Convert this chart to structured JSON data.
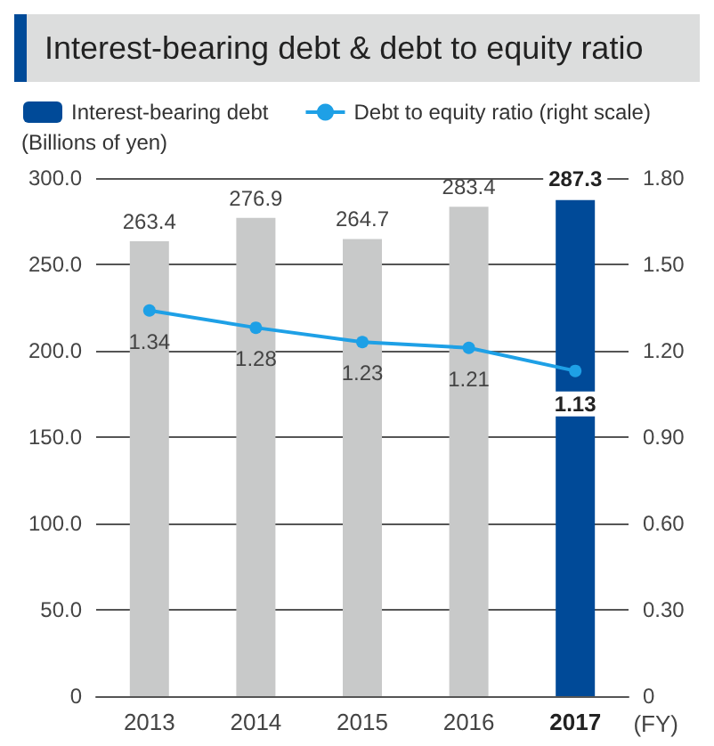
{
  "chart_data": {
    "type": "bar",
    "title": "Interest-bearing debt & debt to equity ratio",
    "categories": [
      "2013",
      "2014",
      "2015",
      "2016",
      "2017"
    ],
    "series": [
      {
        "name": "Interest-bearing debt",
        "color": "#004a98",
        "colors": [
          "#c8c9c9",
          "#c8c9c9",
          "#c8c9c9",
          "#c8c9c9",
          "#004a98"
        ],
        "values": [
          263.4,
          276.9,
          264.7,
          283.4,
          287.3
        ]
      },
      {
        "name": "Debt to equity ratio (right scale)",
        "type": "line",
        "axis": "y2",
        "color": "#1ea0e6",
        "values": [
          1.34,
          1.28,
          1.23,
          1.21,
          1.13
        ]
      }
    ],
    "ylabel": "(Billions of yen)",
    "ylim": [
      0,
      300
    ],
    "yticks": [
      0,
      {
        "value": 50,
        "label": "50.0"
      },
      {
        "value": 100,
        "label": "100.0"
      },
      {
        "value": 150,
        "label": "150.0"
      },
      {
        "value": 200,
        "label": "200.0"
      },
      {
        "value": 250,
        "label": "250.0"
      },
      {
        "value": 300,
        "label": "300.0"
      }
    ],
    "y2lim": [
      0,
      1.8
    ],
    "y2ticks": [
      0,
      {
        "value": 0.3,
        "label": "0.30"
      },
      {
        "value": 0.6,
        "label": "0.60"
      },
      {
        "value": 0.9,
        "label": "0.90"
      },
      {
        "value": 1.2,
        "label": "1.20"
      },
      {
        "value": 1.5,
        "label": "1.50"
      },
      {
        "value": 1.8,
        "label": "1.80"
      }
    ],
    "annotations": [
      "(FY)"
    ],
    "data_labels": true,
    "grid": "y",
    "legend": "top",
    "marker": "circle"
  }
}
